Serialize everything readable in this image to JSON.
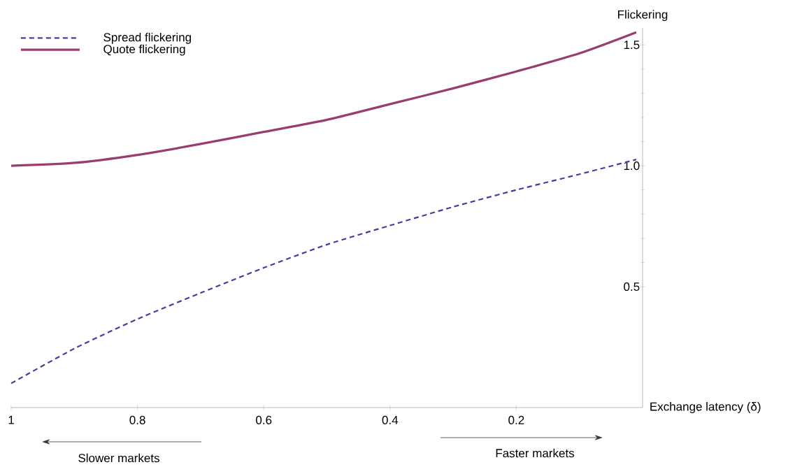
{
  "chart_data": {
    "type": "line",
    "xlabel": "Exchange latency (δ)",
    "ylabel": "Flickering",
    "xlim": [
      1,
      0
    ],
    "xticks": [
      1,
      0.8,
      0.6,
      0.4,
      0.2
    ],
    "ylim": [
      0,
      1.57
    ],
    "yticks": [
      0.5,
      {
        "value": 1,
        "label": "1.0"
      },
      1.5
    ],
    "legend": "top left",
    "grid": false,
    "series": [
      {
        "name": "Spread flickering",
        "color": "#3f3f9f",
        "line_style": "dashed",
        "x": [
          1,
          0.9,
          0.8,
          0.7,
          0.6,
          0.5,
          0.4,
          0.3,
          0.2,
          0.1,
          0.01
        ],
        "values": [
          0.1,
          0.244,
          0.366,
          0.474,
          0.578,
          0.674,
          0.753,
          0.83,
          0.9,
          0.965,
          1.026
        ]
      },
      {
        "name": "Quote flickering",
        "color": "#993d71",
        "line_style": "solid",
        "x": [
          1,
          0.9,
          0.8,
          0.7,
          0.6,
          0.5,
          0.4,
          0.3,
          0.2,
          0.1,
          0.01
        ],
        "values": [
          1.0,
          1.012,
          1.045,
          1.09,
          1.14,
          1.19,
          1.255,
          1.32,
          1.39,
          1.465,
          1.552
        ]
      }
    ],
    "annotations": [
      "Slower markets",
      "Faster markets"
    ]
  }
}
